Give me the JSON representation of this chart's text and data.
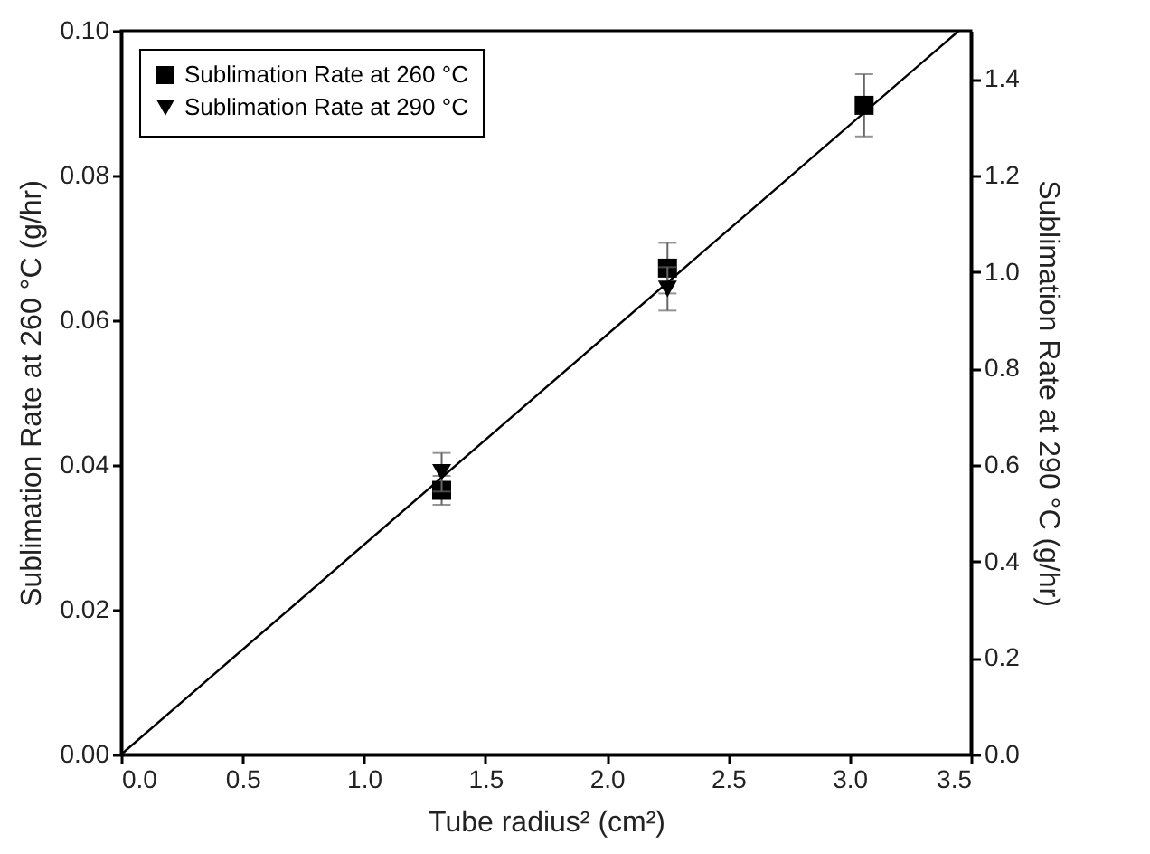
{
  "chart_data": {
    "type": "scatter",
    "xlabel": "Tube radius² (cm²)",
    "ylabel": "Sublimation Rate at 260 °C (g/hr)",
    "y2label": "Sublimation Rate at 290 °C (g/hr)",
    "x": [
      1.32,
      2.25,
      3.06
    ],
    "series": [
      {
        "name": "Sublimation Rate at 260 °C",
        "color": "#000000",
        "marker": "square",
        "values": [
          0.0365,
          0.0672,
          0.0897
        ],
        "errors": [
          0.002,
          0.0035,
          0.0043
        ]
      },
      {
        "name": "Sublimation Rate at 290 °C",
        "color": "#000000",
        "marker": "triangle-down",
        "axis": "y2",
        "x": [
          1.32,
          2.25
        ],
        "values": [
          0.585,
          0.965
        ],
        "errors": [
          0.04,
          0.045
        ]
      },
      {
        "type": "line",
        "color": "#000000",
        "x": [
          0,
          3.45
        ],
        "values": [
          0,
          0.1
        ]
      }
    ],
    "xlim": [
      0,
      3.5
    ],
    "xticks": [
      {
        "value": 0,
        "label": "0.0"
      },
      0.5,
      {
        "value": 1,
        "label": "1.0"
      },
      1.5,
      {
        "value": 2,
        "label": "2.0"
      },
      2.5,
      {
        "value": 3,
        "label": "3.0"
      },
      3.5
    ],
    "ylim": [
      0,
      0.1
    ],
    "yticks": [
      {
        "value": 0,
        "label": "0.00"
      },
      0.02,
      0.04,
      0.06,
      0.08,
      {
        "value": 0.1,
        "label": "0.10"
      }
    ],
    "y2lim": [
      0,
      1.5
    ],
    "y2ticks": [
      {
        "value": 0,
        "label": "0.0"
      },
      0.2,
      0.4,
      0.6,
      0.8,
      {
        "value": 1,
        "label": "1.0"
      },
      1.2,
      1.4
    ],
    "legend": "top left",
    "grid": false
  }
}
